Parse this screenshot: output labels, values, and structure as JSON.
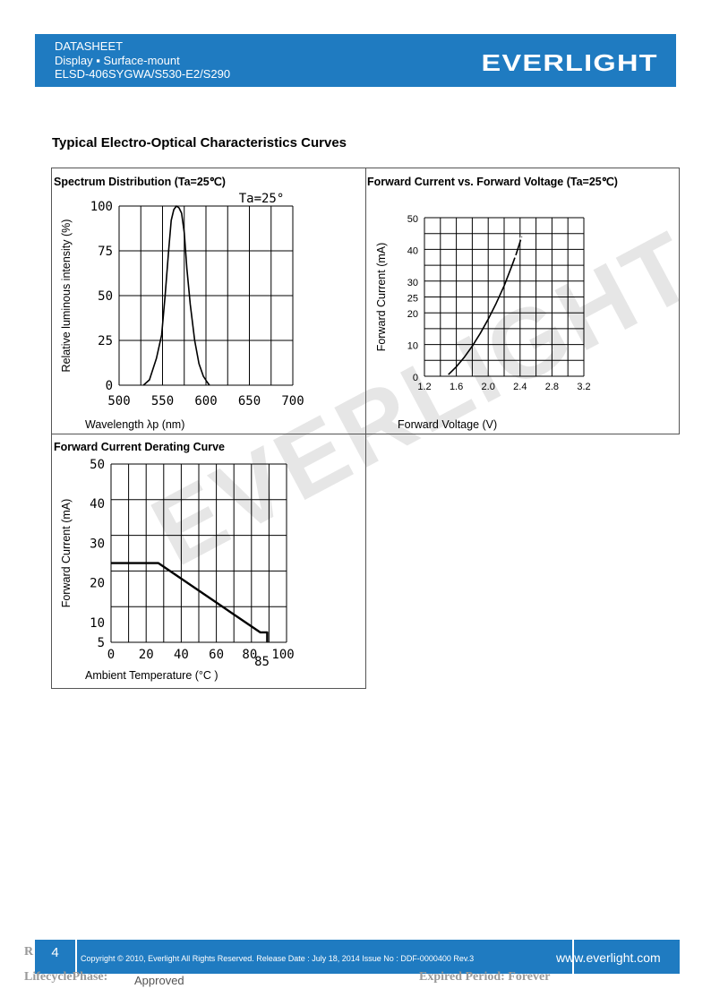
{
  "header": {
    "line1": "DATASHEET",
    "line2": "Display ▪ Surface-mount",
    "line3": "ELSD-406SYGWA/S530-E2/S290",
    "logo": "EVERLIGHT",
    "color": "#1f7bc1"
  },
  "section_title": "Typical Electro-Optical Characteristics Curves",
  "watermark": "EVERLIGHT",
  "chart_data": [
    {
      "type": "line",
      "title": "Spectrum Distribution (Ta=25℃)",
      "annotation": "Ta=25°",
      "xlabel": "Wavelength λp (nm)",
      "ylabel": "Relative luminous intensity (%)",
      "xlim": [
        500,
        700
      ],
      "ylim": [
        0,
        100
      ],
      "xticks": [
        "500",
        "550",
        "600",
        "650",
        "700"
      ],
      "yticks": [
        "0",
        "25",
        "50",
        "75",
        "100"
      ],
      "grid": true,
      "series": [
        {
          "x": [
            528,
            535,
            543,
            549,
            553,
            557,
            560,
            563,
            566,
            569,
            572,
            575,
            578,
            582,
            587,
            592,
            597,
            601,
            604
          ],
          "y": [
            0,
            3,
            15,
            28,
            50,
            75,
            92,
            98,
            100,
            99,
            96,
            85,
            65,
            45,
            25,
            12,
            5,
            2,
            0
          ]
        }
      ]
    },
    {
      "type": "line",
      "title": "Forward Current vs. Forward Voltage (Ta=25℃)",
      "xlabel": "Forward Voltage (V)",
      "ylabel": "Forward Current (mA)",
      "xlim": [
        1.2,
        3.2
      ],
      "ylim": [
        0,
        50
      ],
      "xticks": [
        "1.2",
        "1.6",
        "2.0",
        "2.4",
        "2.8",
        "3.2"
      ],
      "yticks": [
        "0",
        "10",
        "20",
        "25",
        "30",
        "40",
        "50"
      ],
      "grid": true,
      "series": [
        {
          "x": [
            1.5,
            1.6,
            1.7,
            1.8,
            1.9,
            2.0,
            2.1,
            2.2,
            2.3,
            2.35,
            2.42
          ],
          "y": [
            0.5,
            3,
            6,
            9.5,
            13.5,
            18,
            23,
            28.5,
            35,
            38.5,
            44
          ]
        }
      ]
    },
    {
      "type": "line",
      "title": "Forward Current Derating Curve",
      "xlabel": "Ambient Temperature (°C )",
      "ylabel": "Forward Current (mA)",
      "xlim": [
        0,
        100
      ],
      "ylim": [
        5,
        50
      ],
      "xticks": [
        "0",
        "20",
        "40",
        "60",
        "80",
        "85",
        "100"
      ],
      "yticks": [
        "5",
        "10",
        "20",
        "30",
        "40",
        "50"
      ],
      "grid": true,
      "series": [
        {
          "x": [
            0,
            27,
            85,
            89,
            89
          ],
          "y": [
            25,
            25,
            7.5,
            7.5,
            5
          ]
        }
      ]
    }
  ],
  "footer": {
    "page": "4",
    "copyright": "Copyright © 2010, Everlight All Rights Reserved. Release Date : July 18, 2014 Issue No : DDF-0000400 Rev.3",
    "website": "www.everlight.com",
    "lifecycle_label": "LifecyclePhase:",
    "lifecycle_value": "Approved",
    "expired": "Expired Period: Forever",
    "r_mark": "R"
  }
}
